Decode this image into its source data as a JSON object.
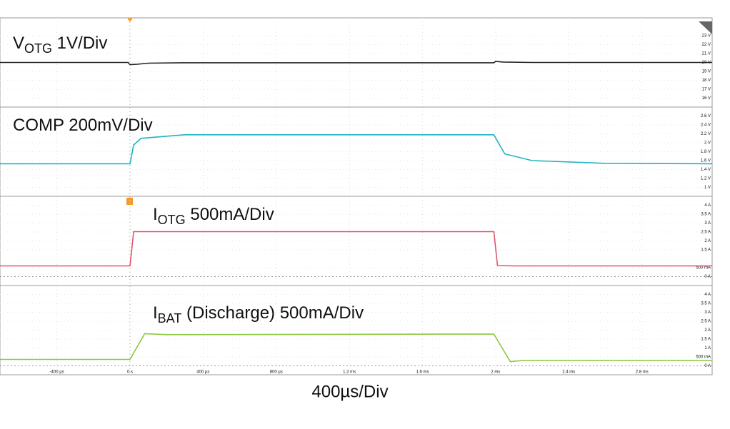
{
  "chart_data": [
    {
      "type": "line",
      "title": {
        "main": "V",
        "sub": "OTG",
        "rest": " 1V/Div"
      },
      "ylim": [
        15,
        25
      ],
      "yticks": [
        {
          "value": 16,
          "label": "16 V"
        },
        {
          "value": 17,
          "label": "17 V"
        },
        {
          "value": 18,
          "label": "18 V"
        },
        {
          "value": 19,
          "label": "19 V"
        },
        {
          "value": 20,
          "label": "20 V"
        },
        {
          "value": 21,
          "label": "21 V"
        },
        {
          "value": 22,
          "label": "22 V"
        },
        {
          "value": 23,
          "label": "23 V"
        }
      ],
      "series": [
        {
          "color": "#222222",
          "x": [
            -711,
            -10,
            0,
            40,
            100,
            300,
            1990,
            2000,
            2040,
            2200,
            3184
          ],
          "values": [
            20,
            20,
            19.75,
            19.8,
            19.92,
            19.97,
            19.97,
            20.12,
            20.05,
            20,
            20
          ]
        }
      ]
    },
    {
      "type": "line",
      "title": {
        "main": "COMP 200mV/Div"
      },
      "ylim": [
        0.8,
        2.8
      ],
      "yticks": [
        {
          "value": 1,
          "label": "1 V"
        },
        {
          "value": 1.2,
          "label": "1.2 V"
        },
        {
          "value": 1.4,
          "label": "1.4 V"
        },
        {
          "value": 1.6,
          "label": "1.6 V"
        },
        {
          "value": 1.8,
          "label": "1.8 V"
        },
        {
          "value": 2,
          "label": "2 V"
        },
        {
          "value": 2.2,
          "label": "2.2 V"
        },
        {
          "value": 2.4,
          "label": "2.4 V"
        },
        {
          "value": 2.6,
          "label": "2.6 V"
        }
      ],
      "series": [
        {
          "color": "#1fb3c2",
          "x": [
            -711,
            0,
            20,
            60,
            300,
            1990,
            2050,
            2200,
            2600,
            3184
          ],
          "values": [
            1.53,
            1.53,
            1.95,
            2.1,
            2.18,
            2.18,
            1.75,
            1.6,
            1.54,
            1.53
          ]
        }
      ]
    },
    {
      "type": "line",
      "title": {
        "main": "I",
        "sub": "OTG",
        "rest": " 500mA/Div"
      },
      "ylim": [
        -0.5,
        4.5
      ],
      "yticks": [
        {
          "value": 0,
          "label": "0 A"
        },
        {
          "value": 0.5,
          "label": "500 mA"
        },
        {
          "value": 1.5,
          "label": "1.5 A"
        },
        {
          "value": 2,
          "label": "2 A"
        },
        {
          "value": 2.5,
          "label": "2.5 A"
        },
        {
          "value": 3,
          "label": "3 A"
        },
        {
          "value": 3.5,
          "label": "3.5 A"
        },
        {
          "value": 4,
          "label": "4 A"
        }
      ],
      "series": [
        {
          "color": "#e0566c",
          "x": [
            -711,
            0,
            20,
            1990,
            2010,
            2100,
            3184
          ],
          "values": [
            0.6,
            0.6,
            2.52,
            2.52,
            0.62,
            0.6,
            0.6
          ]
        }
      ]
    },
    {
      "type": "line",
      "title": {
        "main": "I",
        "sub": "BAT",
        "rest": " (Discharge) 500mA/Div"
      },
      "ylim": [
        -0.5,
        4.5
      ],
      "yticks": [
        {
          "value": 0,
          "label": "0 A"
        },
        {
          "value": 0.5,
          "label": "500 mA"
        },
        {
          "value": 1,
          "label": "1 A"
        },
        {
          "value": 1.5,
          "label": "1.5 A"
        },
        {
          "value": 2,
          "label": "2 A"
        },
        {
          "value": 2.5,
          "label": "2.5 A"
        },
        {
          "value": 3,
          "label": "3 A"
        },
        {
          "value": 3.5,
          "label": "3.5 A"
        },
        {
          "value": 4,
          "label": "4 A"
        }
      ],
      "series": [
        {
          "color": "#8cc63f",
          "x": [
            -711,
            0,
            80,
            200,
            1990,
            2080,
            2150,
            3184
          ],
          "values": [
            0.36,
            0.36,
            1.8,
            1.75,
            1.78,
            0.24,
            0.3,
            0.3
          ]
        }
      ],
      "xlim": [
        -711,
        3184
      ],
      "xticks": [
        {
          "value": -400,
          "label": "-400 µs"
        },
        {
          "value": 0,
          "label": "0 s"
        },
        {
          "value": 400,
          "label": "400 µs"
        },
        {
          "value": 800,
          "label": "800 µs"
        },
        {
          "value": 1200,
          "label": "1.2 ms"
        },
        {
          "value": 1600,
          "label": "1.6 ms"
        },
        {
          "value": 2000,
          "label": "2 ms"
        },
        {
          "value": 2400,
          "label": "2.4 ms"
        },
        {
          "value": 2800,
          "label": "2.8 ms"
        }
      ],
      "xlabel": "400µs/Div"
    }
  ]
}
